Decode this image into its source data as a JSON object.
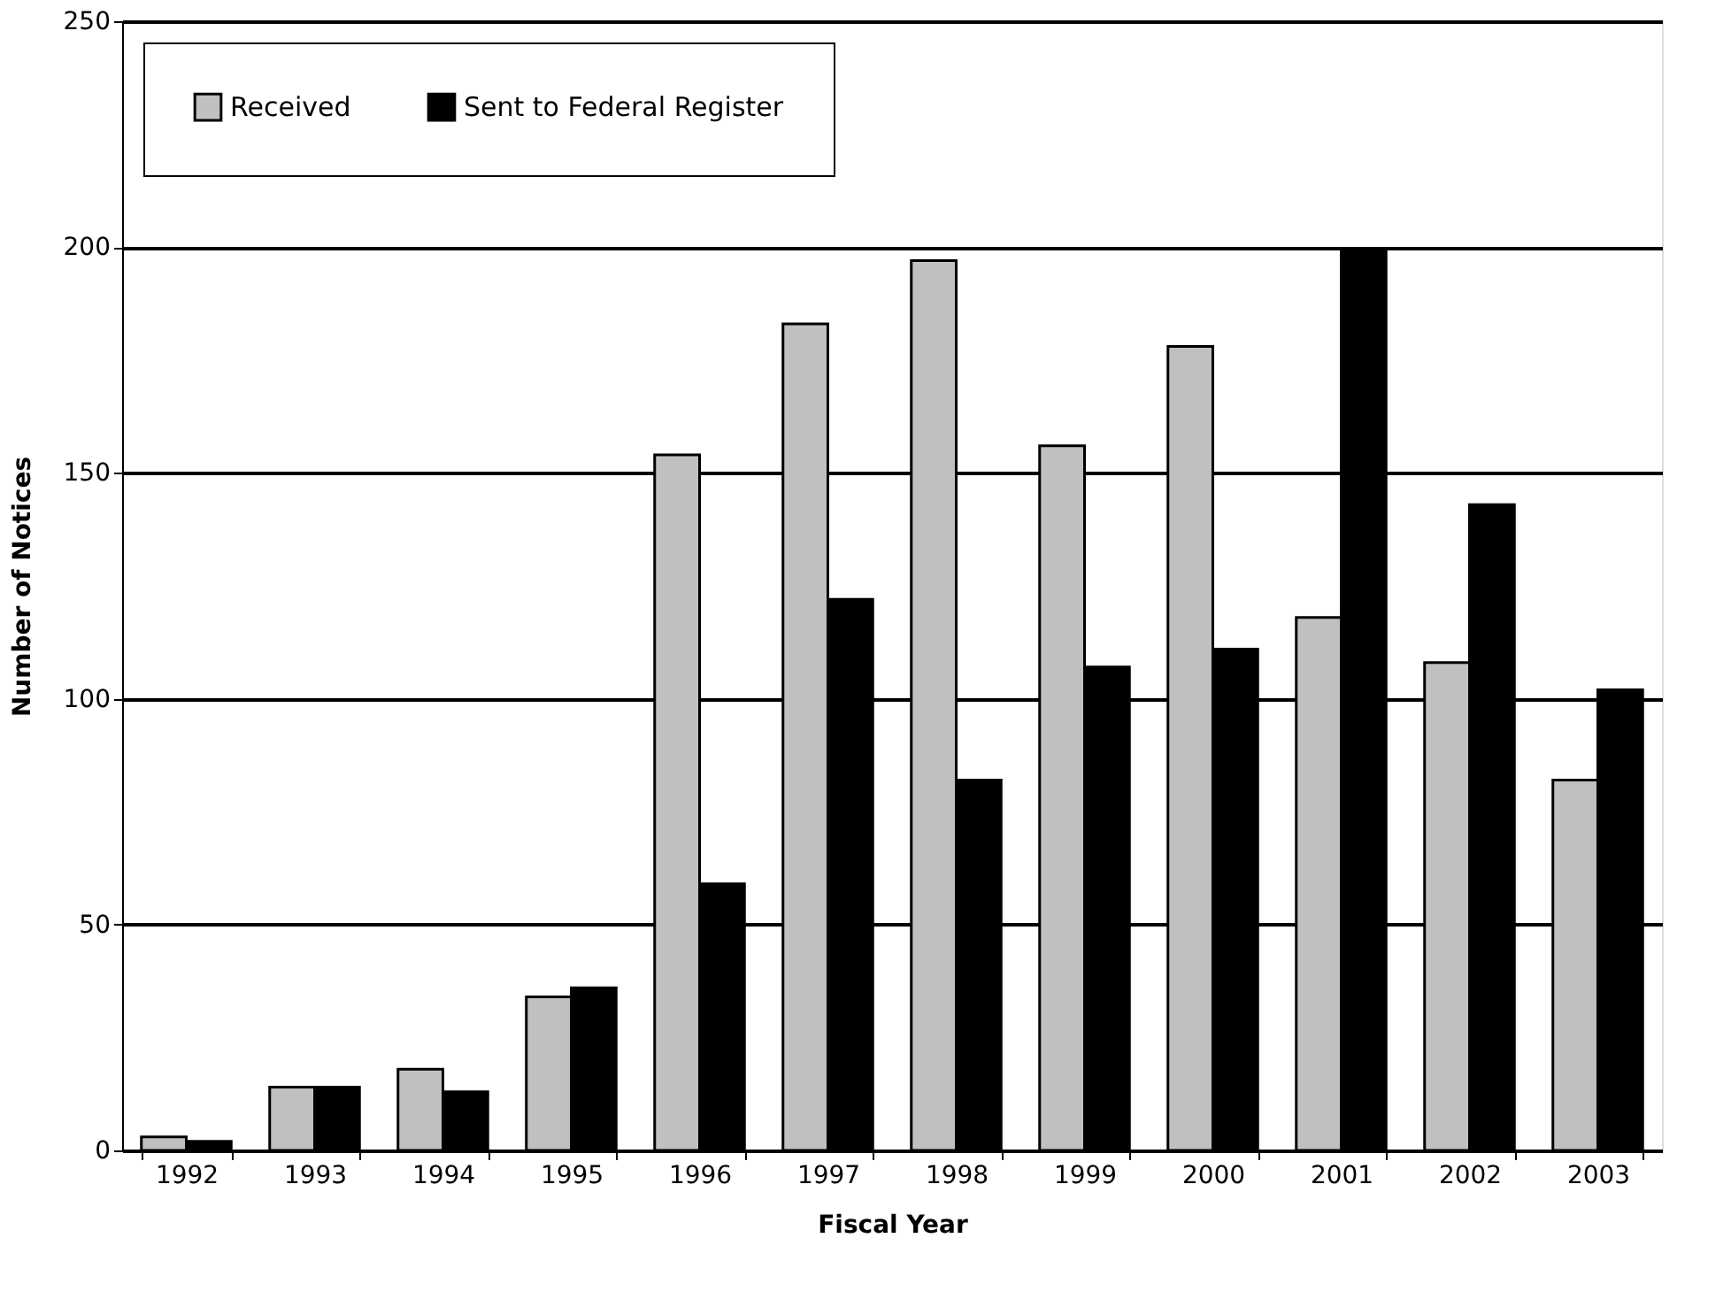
{
  "chart_data": {
    "type": "bar",
    "xlabel": "Fiscal Year",
    "ylabel": "Number of Notices",
    "categories": [
      "1992",
      "1993",
      "1994",
      "1995",
      "1996",
      "1997",
      "1998",
      "1999",
      "2000",
      "2001",
      "2002",
      "2003"
    ],
    "series": [
      {
        "name": "Received",
        "color": "#c0c0c0",
        "values": [
          3,
          14,
          18,
          34,
          154,
          183,
          197,
          156,
          178,
          118,
          108,
          82
        ]
      },
      {
        "name": "Sent to Federal Register",
        "color": "#000000",
        "values": [
          2,
          14,
          13,
          36,
          59,
          122,
          82,
          107,
          111,
          199,
          143,
          102
        ]
      }
    ],
    "ylim": [
      0,
      250
    ],
    "yticks": [
      0,
      50,
      100,
      150,
      200,
      250
    ],
    "grid": "y",
    "legend": "top left"
  }
}
